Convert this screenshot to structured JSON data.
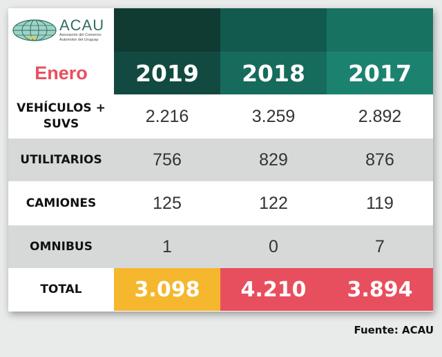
{
  "logo": {
    "name": "ACAU",
    "subtitle_line1": "Asociación del Comercio",
    "subtitle_line2": "Automotor del Uruguay"
  },
  "table": {
    "month_label": "Enero",
    "years": [
      "2019",
      "2018",
      "2017"
    ],
    "rows": [
      {
        "label_line1": "VEHÍCULOS +",
        "label_line2": "SUVS",
        "values": [
          "2.216",
          "3.259",
          "2.892"
        ]
      },
      {
        "label_line1": "UTILITARIOS",
        "label_line2": "",
        "values": [
          "756",
          "829",
          "876"
        ]
      },
      {
        "label_line1": "CAMIONES",
        "label_line2": "",
        "values": [
          "125",
          "122",
          "119"
        ]
      },
      {
        "label_line1": "OMNIBUS",
        "label_line2": "",
        "values": [
          "1",
          "0",
          "7"
        ]
      }
    ],
    "total": {
      "label": "TOTAL",
      "values": [
        "3.098",
        "4.210",
        "3.894"
      ]
    }
  },
  "source": "Fuente: ACAU",
  "colors": {
    "month": "#e84f5e",
    "total_2019": "#f5b72e",
    "total_other": "#e84f5e",
    "header_dark": "#124a41",
    "header_mid": "#166b5d",
    "header_light": "#1c8270"
  }
}
